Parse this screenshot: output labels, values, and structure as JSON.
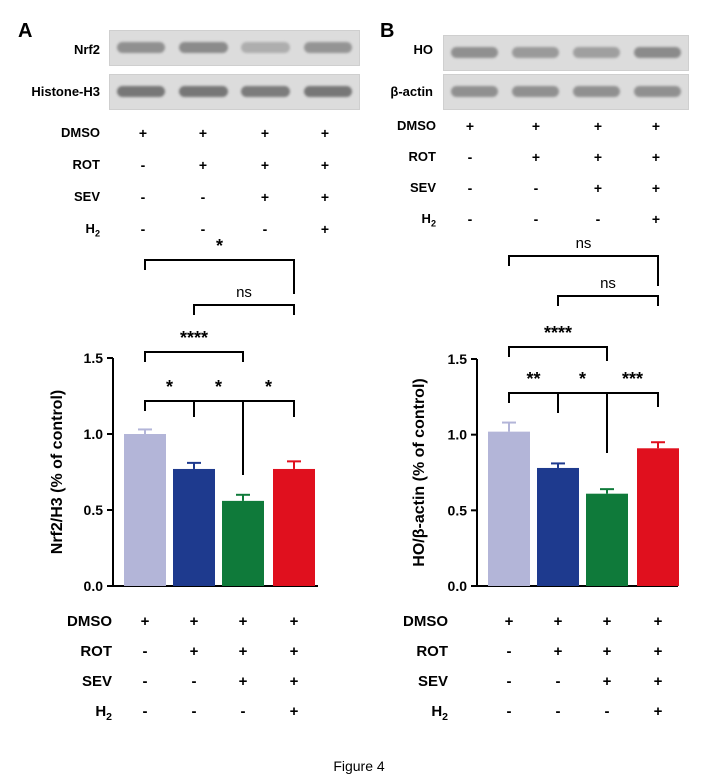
{
  "caption": "Figure 4",
  "panelA": {
    "letter": "A",
    "blots": [
      {
        "label": "Nrf2",
        "intensities": [
          0.75,
          0.8,
          0.45,
          0.7
        ]
      },
      {
        "label": "Histone-H3",
        "intensities": [
          1.0,
          1.0,
          0.95,
          1.0
        ]
      }
    ]
  },
  "panelB": {
    "letter": "B",
    "blots": [
      {
        "label": "HO",
        "intensities": [
          0.75,
          0.65,
          0.6,
          0.8
        ]
      },
      {
        "label": "β-actin",
        "intensities": [
          0.75,
          0.75,
          0.75,
          0.75
        ]
      }
    ]
  },
  "conditions": {
    "rows": [
      {
        "label": "DMSO",
        "marks": [
          "+",
          "+",
          "+",
          "+"
        ]
      },
      {
        "label": "ROT",
        "marks": [
          "-",
          "+",
          "+",
          "+"
        ]
      },
      {
        "label": "SEV",
        "marks": [
          "-",
          "-",
          "+",
          "+"
        ]
      },
      {
        "label_main": "H",
        "label_sub": "2",
        "marks": [
          "-",
          "-",
          "-",
          "+"
        ]
      }
    ]
  },
  "chart_data": [
    {
      "type": "bar",
      "ylabel": "Nrf2/H3 (% of control)",
      "ylim": [
        0,
        1.5
      ],
      "yticks": [
        "0.0",
        "0.5",
        "1.0",
        "1.5"
      ],
      "categories": [
        "DMSO",
        "DMSO+ROT",
        "DMSO+ROT+SEV",
        "DMSO+ROT+SEV+H2"
      ],
      "values": [
        1.0,
        0.77,
        0.56,
        0.77
      ],
      "errors": [
        0.03,
        0.04,
        0.04,
        0.05
      ],
      "colors": [
        "#b3b5d8",
        "#1e3a8e",
        "#0f7a3a",
        "#e0101e"
      ],
      "significance": [
        {
          "from": 0,
          "to": 3,
          "label": "*"
        },
        {
          "from": 1,
          "to": 3,
          "label": "ns"
        },
        {
          "from": 0,
          "to": 2,
          "label": "****"
        },
        {
          "from": 0,
          "to": 1,
          "label": "*"
        },
        {
          "from": 1,
          "to": 2,
          "label": "*"
        },
        {
          "from": 2,
          "to": 3,
          "label": "*"
        }
      ]
    },
    {
      "type": "bar",
      "ylabel": "HO/β-actin (% of control)",
      "ylim": [
        0,
        1.5
      ],
      "yticks": [
        "0.0",
        "0.5",
        "1.0",
        "1.5"
      ],
      "categories": [
        "DMSO",
        "DMSO+ROT",
        "DMSO+ROT+SEV",
        "DMSO+ROT+SEV+H2"
      ],
      "values": [
        1.02,
        0.78,
        0.61,
        0.91
      ],
      "errors": [
        0.06,
        0.03,
        0.03,
        0.04
      ],
      "colors": [
        "#b3b5d8",
        "#1e3a8e",
        "#0f7a3a",
        "#e0101e"
      ],
      "significance": [
        {
          "from": 0,
          "to": 3,
          "label": "ns"
        },
        {
          "from": 1,
          "to": 3,
          "label": "ns"
        },
        {
          "from": 0,
          "to": 2,
          "label": "****"
        },
        {
          "from": 0,
          "to": 1,
          "label": "**"
        },
        {
          "from": 1,
          "to": 2,
          "label": "*"
        },
        {
          "from": 2,
          "to": 3,
          "label": "***"
        }
      ]
    }
  ]
}
